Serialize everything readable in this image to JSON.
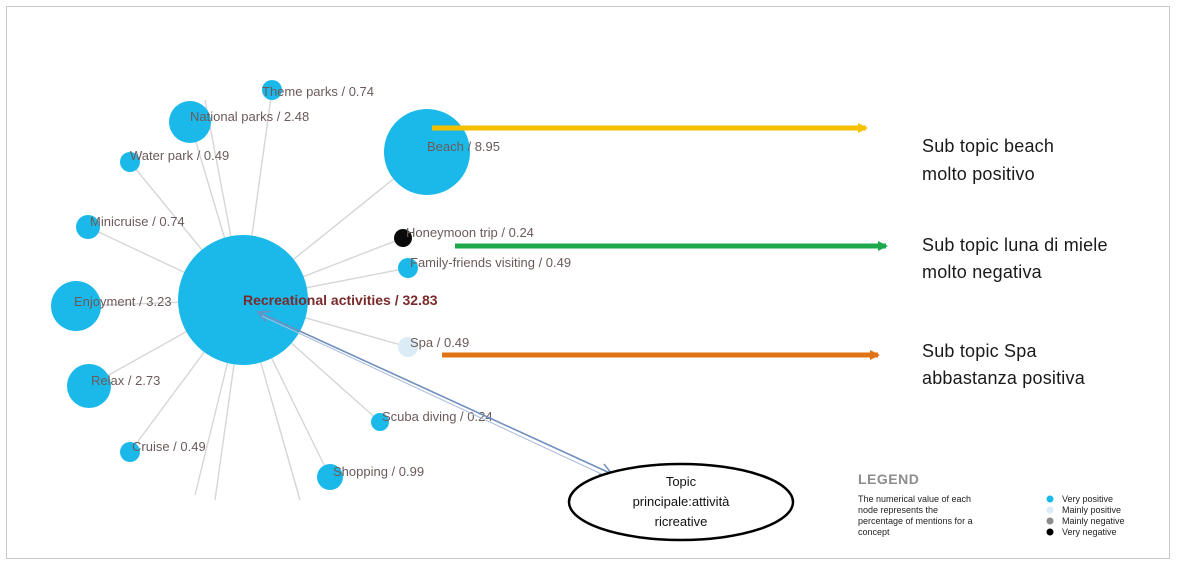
{
  "diagram": {
    "center": {
      "label": "Recreational activities / 32.83",
      "sentiment": "very-positive"
    },
    "nodes": [
      {
        "id": "theme",
        "label": "Theme parks / 0.74",
        "sentiment": "very-positive"
      },
      {
        "id": "national",
        "label": "National parks / 2.48",
        "sentiment": "very-positive"
      },
      {
        "id": "water",
        "label": "Water park / 0.49",
        "sentiment": "very-positive"
      },
      {
        "id": "beach",
        "label": "Beach / 8.95",
        "sentiment": "very-positive"
      },
      {
        "id": "minicruise",
        "label": "Minicruise / 0.74",
        "sentiment": "very-positive"
      },
      {
        "id": "honeymoon",
        "label": "Honeymoon trip / 0.24",
        "sentiment": "very-negative"
      },
      {
        "id": "family",
        "label": "Family-friends visiting / 0.49",
        "sentiment": "very-positive"
      },
      {
        "id": "enjoyment",
        "label": "Enjoyment / 3.23",
        "sentiment": "very-positive"
      },
      {
        "id": "spa",
        "label": "Spa / 0.49",
        "sentiment": "mainly-positive"
      },
      {
        "id": "relax",
        "label": "Relax / 2.73",
        "sentiment": "very-positive"
      },
      {
        "id": "scuba",
        "label": "Scuba diving / 0.24",
        "sentiment": "very-positive"
      },
      {
        "id": "cruise",
        "label": "Cruise / 0.49",
        "sentiment": "very-positive"
      },
      {
        "id": "shopping",
        "label": "Shopping / 0.99",
        "sentiment": "very-positive"
      }
    ]
  },
  "annotations": [
    {
      "id": "beach",
      "line1": "Sub topic beach",
      "line2": "molto positivo",
      "arrow_color": "#f5c000"
    },
    {
      "id": "honeymoon",
      "line1": "Sub topic luna di miele",
      "line2": "molto negativa",
      "arrow_color": "#1fa84a"
    },
    {
      "id": "spa",
      "line1": "Sub topic Spa",
      "line2": "abbastanza positiva",
      "arrow_color": "#e07314"
    }
  ],
  "topic_box": {
    "line1": "Topic",
    "line2": "principale:attività",
    "line3": "ricreative",
    "arrow_color": "#6f8fbf"
  },
  "legend": {
    "title": "LEGEND",
    "desc_lines": [
      "The numerical value of each",
      "node represents the",
      "percentage of mentions for a",
      "concept"
    ],
    "items": [
      {
        "label": "Very positive",
        "color": "#1ab9ea"
      },
      {
        "label": "Mainly positive",
        "color": "#dcecf7"
      },
      {
        "label": "Mainly negative",
        "color": "#8c8c8c"
      },
      {
        "label": "Very negative",
        "color": "#000000"
      }
    ]
  },
  "colors": {
    "very_positive": "#1ab9ea",
    "mainly_positive": "#dcecf7",
    "very_negative": "#0a0a0a",
    "edge": "#d6d6d6"
  }
}
